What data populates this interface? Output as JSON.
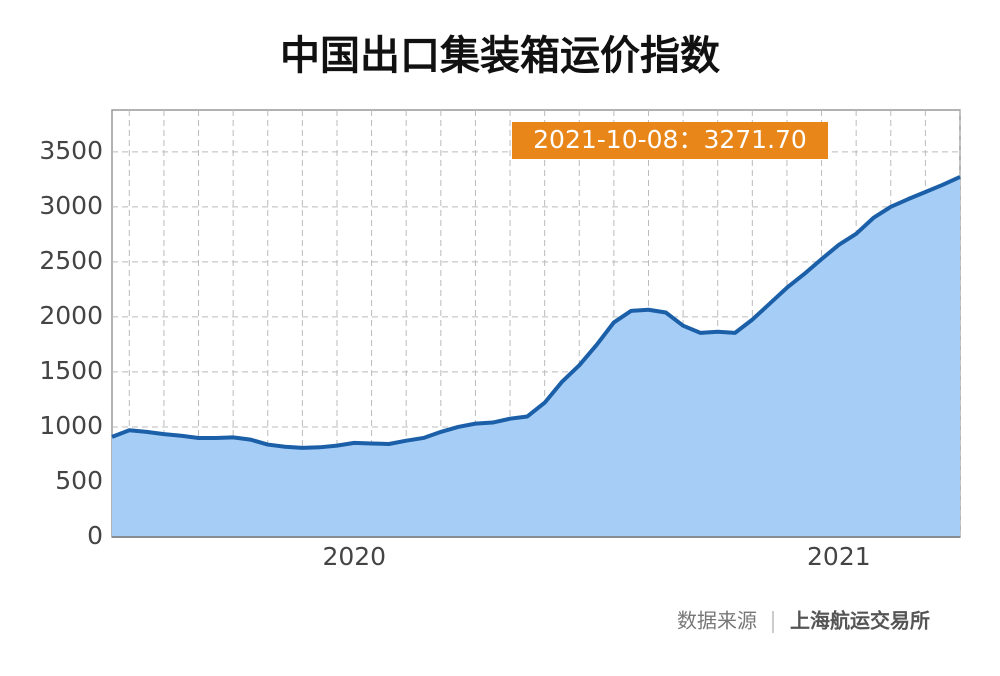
{
  "chart_data": {
    "type": "area",
    "title": "中国出口集装箱运价指数",
    "annotation": "2021-10-08：3271.70",
    "source_label": "数据来源",
    "source": "上海航运交易所",
    "categories": [
      null,
      null,
      null,
      null,
      null,
      null,
      null,
      null,
      null,
      null,
      null,
      null,
      null,
      null,
      "2020",
      null,
      null,
      null,
      null,
      null,
      null,
      null,
      null,
      null,
      null,
      null,
      null,
      null,
      null,
      null,
      null,
      null,
      null,
      null,
      null,
      null,
      null,
      null,
      null,
      null,
      null,
      null,
      "2021",
      null,
      null,
      null,
      null,
      null,
      null,
      null
    ],
    "series": [
      {
        "name": "中国出口集装箱运价指数",
        "color": "#1a5fa8",
        "fill": "#a6cdf5",
        "values": [
          910,
          970,
          955,
          935,
          920,
          900,
          900,
          905,
          885,
          840,
          820,
          810,
          815,
          830,
          855,
          850,
          845,
          875,
          900,
          955,
          1000,
          1030,
          1040,
          1075,
          1095,
          1220,
          1410,
          1560,
          1745,
          1950,
          2055,
          2065,
          2040,
          1920,
          1855,
          1865,
          1855,
          1975,
          2120,
          2265,
          2390,
          2525,
          2655,
          2755,
          2900,
          3000,
          3070,
          3135,
          3200,
          3271.7
        ]
      }
    ],
    "ylim": [
      0,
      3880
    ],
    "yticks": [
      0,
      500,
      1000,
      1500,
      2000,
      2500,
      3000,
      3500
    ],
    "grid": true
  }
}
